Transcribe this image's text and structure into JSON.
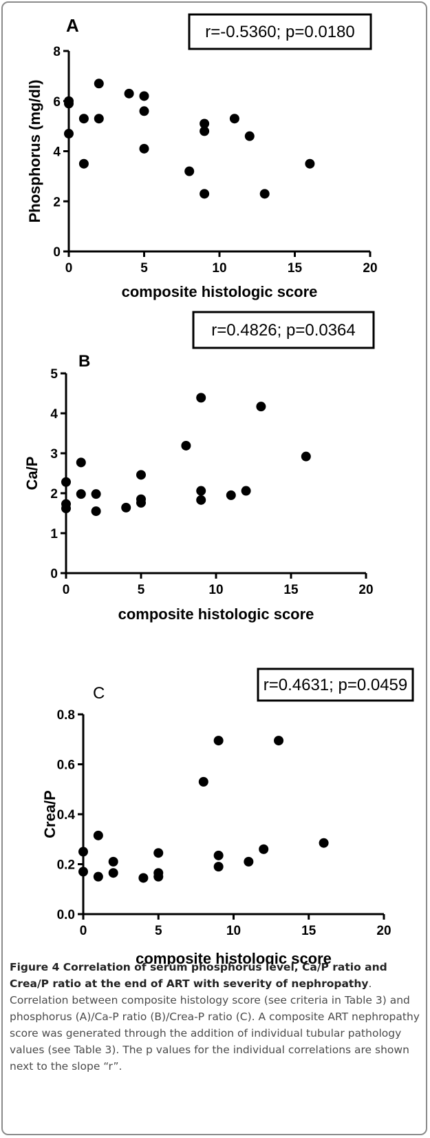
{
  "chart_data": [
    {
      "type": "scatter",
      "panel_label": "A",
      "annotation": "r=-0.5360; p=0.0180",
      "xlabel": "composite histologic score",
      "ylabel": "Phosphorus (mg/dl)",
      "xlim": [
        0,
        20
      ],
      "ylim": [
        0,
        8
      ],
      "xticks": [
        "0",
        "5",
        "10",
        "15",
        "20"
      ],
      "yticks": [
        "0",
        "2",
        "4",
        "6",
        "8"
      ],
      "grid": false,
      "marker_color": "#000000",
      "points": [
        {
          "x": 0,
          "y": 6.0
        },
        {
          "x": 0,
          "y": 5.9
        },
        {
          "x": 0,
          "y": 4.7
        },
        {
          "x": 1,
          "y": 5.3
        },
        {
          "x": 1,
          "y": 3.5
        },
        {
          "x": 2,
          "y": 6.7
        },
        {
          "x": 2,
          "y": 5.3
        },
        {
          "x": 4,
          "y": 6.3
        },
        {
          "x": 5,
          "y": 6.2
        },
        {
          "x": 5,
          "y": 5.6
        },
        {
          "x": 5,
          "y": 4.1
        },
        {
          "x": 8,
          "y": 3.2
        },
        {
          "x": 9,
          "y": 5.1
        },
        {
          "x": 9,
          "y": 4.8
        },
        {
          "x": 9,
          "y": 2.3
        },
        {
          "x": 11,
          "y": 5.3
        },
        {
          "x": 12,
          "y": 4.6
        },
        {
          "x": 13,
          "y": 2.3
        },
        {
          "x": 16,
          "y": 3.5
        }
      ]
    },
    {
      "type": "scatter",
      "panel_label": "B",
      "annotation": "r=0.4826; p=0.0364",
      "xlabel": "composite histologic score",
      "ylabel": "Ca/P",
      "xlim": [
        0,
        20
      ],
      "ylim": [
        0,
        5
      ],
      "xticks": [
        "0",
        "5",
        "10",
        "15",
        "20"
      ],
      "yticks": [
        "0",
        "1",
        "2",
        "3",
        "4",
        "5"
      ],
      "grid": false,
      "marker_color": "#000000",
      "points": [
        {
          "x": 0,
          "y": 2.28
        },
        {
          "x": 0,
          "y": 1.73
        },
        {
          "x": 0,
          "y": 1.62
        },
        {
          "x": 1,
          "y": 2.77
        },
        {
          "x": 1,
          "y": 1.98
        },
        {
          "x": 2,
          "y": 1.98
        },
        {
          "x": 2,
          "y": 1.55
        },
        {
          "x": 4,
          "y": 1.64
        },
        {
          "x": 5,
          "y": 2.46
        },
        {
          "x": 5,
          "y": 1.85
        },
        {
          "x": 5,
          "y": 1.76
        },
        {
          "x": 8,
          "y": 3.19
        },
        {
          "x": 9,
          "y": 4.39
        },
        {
          "x": 9,
          "y": 2.06
        },
        {
          "x": 9,
          "y": 1.83
        },
        {
          "x": 11,
          "y": 1.95
        },
        {
          "x": 12,
          "y": 2.06
        },
        {
          "x": 13,
          "y": 4.17
        },
        {
          "x": 16,
          "y": 2.92
        }
      ]
    },
    {
      "type": "scatter",
      "panel_label": "C",
      "annotation": "r=0.4631; p=0.0459",
      "xlabel": "composite histologic score",
      "ylabel": "Crea/P",
      "xlim": [
        0,
        20
      ],
      "ylim": [
        0,
        0.8
      ],
      "xticks": [
        "0",
        "5",
        "10",
        "15",
        "20"
      ],
      "yticks": [
        "0.0",
        "0.2",
        "0.4",
        "0.6",
        "0.8"
      ],
      "grid": false,
      "marker_color": "#000000",
      "points": [
        {
          "x": 0,
          "y": 0.25
        },
        {
          "x": 0,
          "y": 0.17
        },
        {
          "x": 1,
          "y": 0.315
        },
        {
          "x": 1,
          "y": 0.15
        },
        {
          "x": 2,
          "y": 0.21
        },
        {
          "x": 2,
          "y": 0.165
        },
        {
          "x": 4,
          "y": 0.145
        },
        {
          "x": 5,
          "y": 0.245
        },
        {
          "x": 5,
          "y": 0.165
        },
        {
          "x": 5,
          "y": 0.15
        },
        {
          "x": 8,
          "y": 0.53
        },
        {
          "x": 9,
          "y": 0.695
        },
        {
          "x": 9,
          "y": 0.235
        },
        {
          "x": 9,
          "y": 0.19
        },
        {
          "x": 11,
          "y": 0.21
        },
        {
          "x": 12,
          "y": 0.26
        },
        {
          "x": 13,
          "y": 0.695
        },
        {
          "x": 16,
          "y": 0.285
        }
      ]
    }
  ],
  "caption": {
    "title": "Figure 4 Correlation of serum phosphorus level, Ca/P ratio and Crea/P ratio at the end of ART with severity of nephropathy",
    "period": ".",
    "body": "Correlation between composite histology score (see criteria in Table 3) and phosphorus (A)/Ca-P ratio (B)/Crea-P ratio (C). A composite ART nephropathy score was generated through the addition of individual tubular pathology values (see Table 3). The p values for the individual correlations are shown next to the slope “r”."
  }
}
